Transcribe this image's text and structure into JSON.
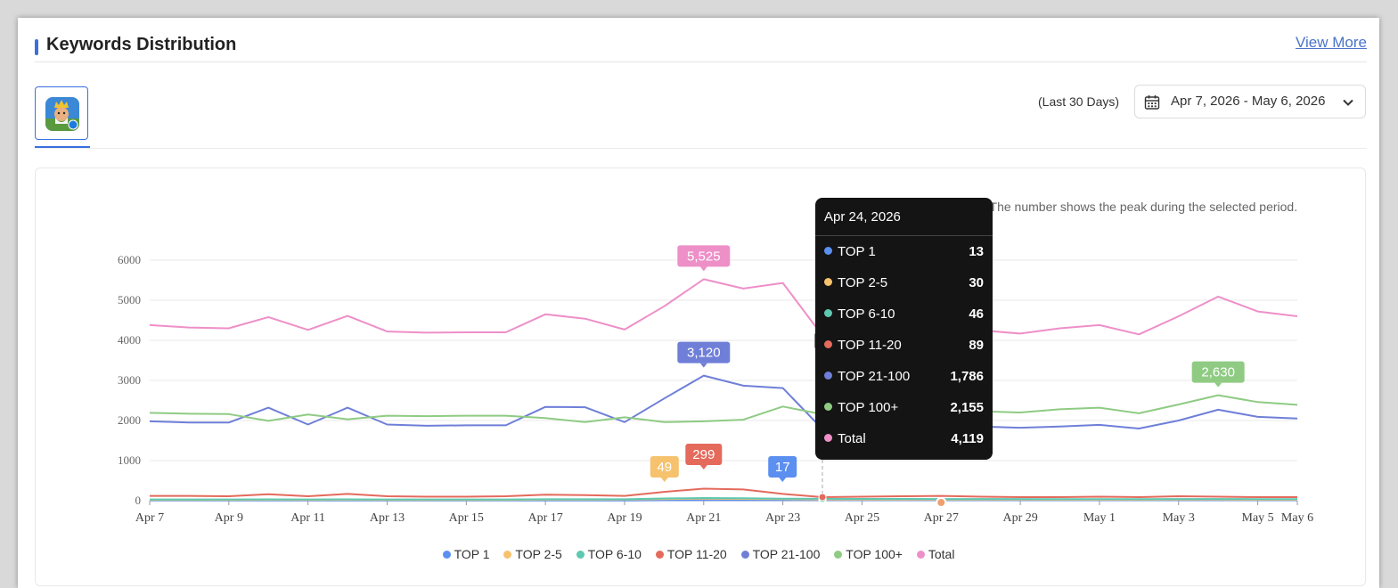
{
  "header": {
    "title": "Keywords Distribution",
    "view_more": "View More"
  },
  "filters": {
    "period_label": "(Last 30 Days)",
    "date_range": "Apr 7, 2026 - May 6, 2026"
  },
  "note": "*Note: The number shows the peak during the selected period.",
  "colors": {
    "accent": "#3b6fe0",
    "TOP 1": "#5b8ff0",
    "TOP 2-5": "#f6c26d",
    "TOP 6-10": "#5ec8b0",
    "TOP 11-20": "#e46a5c",
    "TOP 21-100": "#6f7fd8",
    "TOP 100+": "#8fcb83",
    "Total": "#ee8fc8"
  },
  "chart_data": {
    "type": "line",
    "x": [
      "Apr 7",
      "Apr 8",
      "Apr 9",
      "Apr 10",
      "Apr 11",
      "Apr 12",
      "Apr 13",
      "Apr 14",
      "Apr 15",
      "Apr 16",
      "Apr 17",
      "Apr 18",
      "Apr 19",
      "Apr 20",
      "Apr 21",
      "Apr 22",
      "Apr 23",
      "Apr 24",
      "Apr 25",
      "Apr 26",
      "Apr 27",
      "Apr 28",
      "Apr 29",
      "Apr 30",
      "May 1",
      "May 2",
      "May 3",
      "May 4",
      "May 5",
      "May 6"
    ],
    "x_tick_labels": [
      "Apr 7",
      "Apr 9",
      "Apr 11",
      "Apr 13",
      "Apr 15",
      "Apr 17",
      "Apr 19",
      "Apr 21",
      "Apr 23",
      "Apr 25",
      "Apr 27",
      "Apr 29",
      "May 1",
      "May 3",
      "May 5",
      "May 6"
    ],
    "y_ticks": [
      0,
      1000,
      2000,
      3000,
      4000,
      5000,
      6000
    ],
    "ylim": [
      0,
      6000
    ],
    "grid": true,
    "legend_position": "bottom-center",
    "series": [
      {
        "name": "TOP 1",
        "values": [
          5,
          5,
          5,
          6,
          5,
          6,
          5,
          5,
          5,
          5,
          6,
          6,
          6,
          10,
          15,
          17,
          14,
          13,
          12,
          12,
          12,
          11,
          11,
          11,
          11,
          11,
          12,
          12,
          11,
          11
        ]
      },
      {
        "name": "TOP 2-5",
        "values": [
          20,
          20,
          20,
          22,
          20,
          22,
          20,
          20,
          20,
          20,
          25,
          25,
          26,
          40,
          49,
          45,
          38,
          30,
          28,
          28,
          27,
          26,
          26,
          25,
          25,
          25,
          27,
          26,
          25,
          25
        ]
      },
      {
        "name": "TOP 6-10",
        "values": [
          30,
          30,
          30,
          33,
          30,
          33,
          30,
          30,
          30,
          30,
          35,
          35,
          36,
          55,
          66,
          60,
          52,
          46,
          44,
          44,
          43,
          42,
          42,
          41,
          41,
          41,
          43,
          42,
          41,
          41
        ]
      },
      {
        "name": "TOP 11-20",
        "values": [
          120,
          120,
          110,
          160,
          110,
          170,
          110,
          100,
          100,
          110,
          150,
          140,
          120,
          220,
          299,
          280,
          170,
          89,
          100,
          110,
          120,
          100,
          90,
          90,
          100,
          90,
          110,
          100,
          90,
          90
        ]
      },
      {
        "name": "TOP 21-100",
        "values": [
          1980,
          1950,
          1950,
          2320,
          1900,
          2320,
          1900,
          1870,
          1880,
          1880,
          2340,
          2330,
          1960,
          2550,
          3120,
          2870,
          2810,
          1786,
          1900,
          2050,
          1900,
          1850,
          1820,
          1850,
          1890,
          1800,
          2000,
          2270,
          2090,
          2050
        ]
      },
      {
        "name": "TOP 100+",
        "values": [
          2190,
          2170,
          2160,
          1990,
          2150,
          2030,
          2120,
          2110,
          2120,
          2120,
          2060,
          1960,
          2080,
          1960,
          1980,
          2020,
          2350,
          2155,
          2200,
          2250,
          2250,
          2230,
          2200,
          2280,
          2320,
          2180,
          2400,
          2630,
          2460,
          2390
        ]
      },
      {
        "name": "Total",
        "values": [
          4380,
          4320,
          4300,
          4580,
          4260,
          4610,
          4220,
          4190,
          4200,
          4200,
          4650,
          4540,
          4270,
          4850,
          5525,
          5290,
          5430,
          4119,
          4200,
          4500,
          4400,
          4250,
          4170,
          4300,
          4380,
          4150,
          4600,
          5090,
          4720,
          4600
        ]
      }
    ],
    "peak_labels": [
      {
        "series": "Total",
        "value": "5,525"
      },
      {
        "series": "TOP 21-100",
        "value": "3,120"
      },
      {
        "series": "TOP 100+",
        "value": "2,630"
      },
      {
        "series": "TOP 2-5",
        "value": "49"
      },
      {
        "series": "TOP 11-20",
        "value": "299"
      },
      {
        "series": "TOP 1",
        "value": "17"
      }
    ]
  },
  "tooltip": {
    "date": "Apr 24, 2026",
    "rows": [
      {
        "name": "TOP 1",
        "value": "13"
      },
      {
        "name": "TOP 2-5",
        "value": "30"
      },
      {
        "name": "TOP 6-10",
        "value": "46"
      },
      {
        "name": "TOP 11-20",
        "value": "89"
      },
      {
        "name": "TOP 21-100",
        "value": "1,786"
      },
      {
        "name": "TOP 100+",
        "value": "2,155"
      },
      {
        "name": "Total",
        "value": "4,119"
      }
    ]
  },
  "legend": [
    "TOP 1",
    "TOP 2-5",
    "TOP 6-10",
    "TOP 11-20",
    "TOP 21-100",
    "TOP 100+",
    "Total"
  ],
  "icons": {
    "calendar": "calendar-icon",
    "chevron": "chevron-down-icon",
    "app": "app-icon",
    "cursor": "mouse-cursor-icon"
  }
}
